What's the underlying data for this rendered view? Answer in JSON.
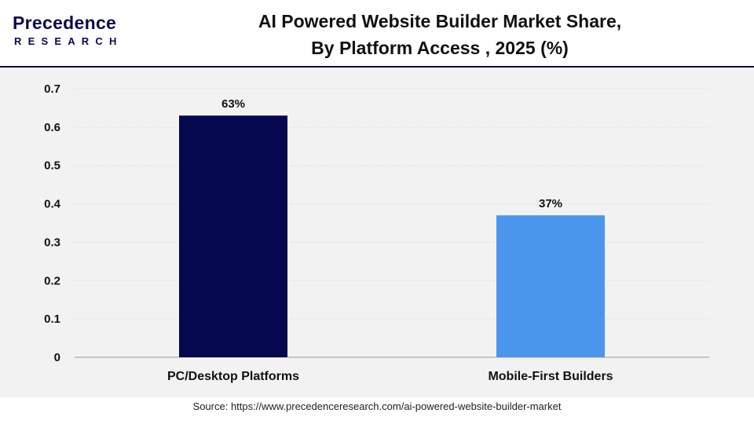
{
  "brand": {
    "logo_main": "Precedence",
    "logo_sub": "RESEARCH"
  },
  "title": {
    "line1": "AI Powered Website Builder Market Share,",
    "line2": "By Platform Access , 2025 (%)"
  },
  "source": "Source: https://www.precedenceresearch.com/ai-powered-website-builder-market",
  "chart_data": {
    "type": "bar",
    "title": "AI Powered Website Builder Market Share, By Platform Access , 2025 (%)",
    "xlabel": "",
    "ylabel": "",
    "categories": [
      "PC/Desktop Platforms",
      "Mobile-First Builders"
    ],
    "values": [
      0.63,
      0.37
    ],
    "data_labels": [
      "63%",
      "37%"
    ],
    "colors": [
      "#06084f",
      "#4a96ec"
    ],
    "ylim": [
      0,
      0.7
    ],
    "yticks": [
      "0",
      "0.1",
      "0.2",
      "0.3",
      "0.4",
      "0.5",
      "0.6",
      "0.7"
    ],
    "grid": true,
    "legend": "none"
  }
}
